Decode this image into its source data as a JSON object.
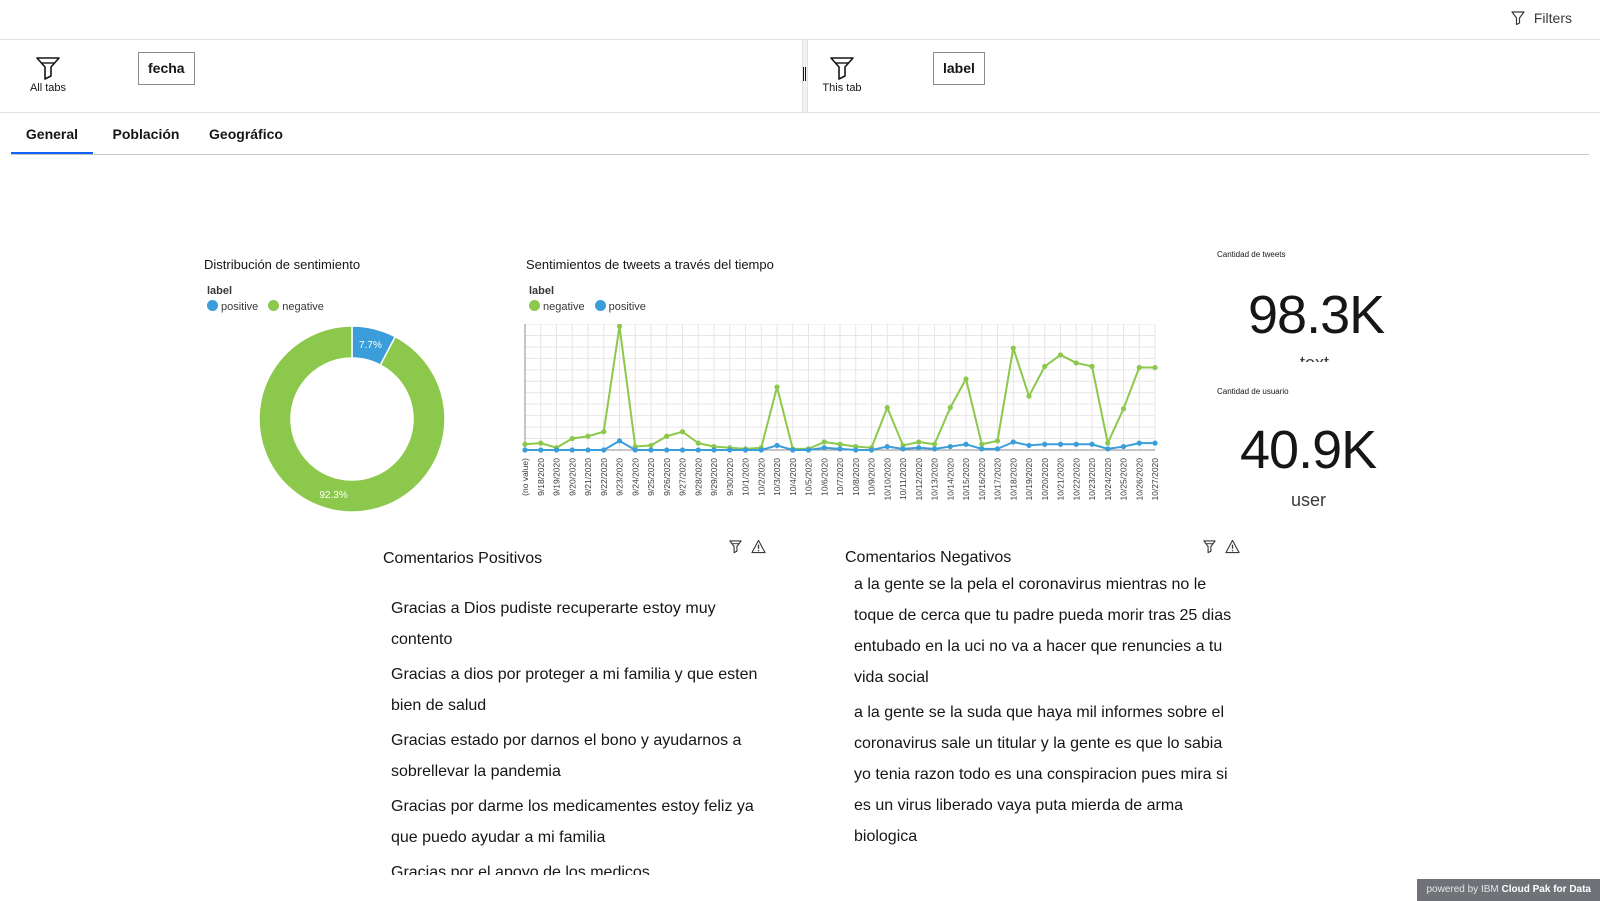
{
  "topbar": {
    "filters_label": "Filters"
  },
  "filterbar": {
    "all_tabs_label": "All tabs",
    "all_tabs_chip": "fecha",
    "this_tab_label": "This tab",
    "this_tab_chip": "label"
  },
  "tabs": [
    {
      "label": "General",
      "active": true
    },
    {
      "label": "Población",
      "active": false
    },
    {
      "label": "Geográfico",
      "active": false
    }
  ],
  "colors": {
    "positive": "#3b9edb",
    "negative": "#8cc84b",
    "tab_accent": "#0f62fe"
  },
  "donut": {
    "title": "Distribución de sentimiento",
    "legend_title": "label",
    "legend": [
      "positive",
      "negative"
    ]
  },
  "line": {
    "title": "Sentimientos de tweets a través del tiempo",
    "legend_title": "label",
    "legend": [
      "negative",
      "positive"
    ]
  },
  "kpis": [
    {
      "label": "Cantidad de tweets",
      "value": "98.3K",
      "sub": "text"
    },
    {
      "label": "Cantidad de usuario",
      "value": "40.9K",
      "sub": "user"
    }
  ],
  "chart_data": [
    {
      "type": "pie",
      "title": "Distribución de sentimiento",
      "categories": [
        "positive",
        "negative"
      ],
      "values": [
        7.7,
        92.3
      ],
      "labels": [
        "7.7%",
        "92.3%"
      ],
      "legend": "top-left"
    },
    {
      "type": "line",
      "title": "Sentimientos de tweets a través del tiempo",
      "xlabel": "",
      "ylabel": "",
      "x": [
        "(no value)",
        "9/18/2020",
        "9/19/2020",
        "9/20/2020",
        "9/21/2020",
        "9/22/2020",
        "9/23/2020",
        "9/24/2020",
        "9/25/2020",
        "9/26/2020",
        "9/27/2020",
        "9/28/2020",
        "9/29/2020",
        "9/30/2020",
        "10/1/2020",
        "10/2/2020",
        "10/3/2020",
        "10/4/2020",
        "10/5/2020",
        "10/6/2020",
        "10/7/2020",
        "10/8/2020",
        "10/9/2020",
        "10/10/2020",
        "10/11/2020",
        "10/12/2020",
        "10/13/2020",
        "10/14/2020",
        "10/15/2020",
        "10/16/2020",
        "10/17/2020",
        "10/18/2020",
        "10/19/2020",
        "10/20/2020",
        "10/21/2020",
        "10/22/2020",
        "10/23/2020",
        "10/24/2020",
        "10/25/2020",
        "10/26/2020",
        "10/27/2020"
      ],
      "series": [
        {
          "name": "negative",
          "values": [
            5,
            6,
            2,
            10,
            12,
            16,
            108,
            3,
            4,
            12,
            16,
            6,
            3,
            2,
            1,
            2,
            55,
            1,
            1,
            7,
            5,
            3,
            2,
            37,
            4,
            7,
            5,
            37,
            62,
            5,
            8,
            89,
            47,
            73,
            83,
            76,
            73,
            6,
            36,
            72,
            72
          ]
        },
        {
          "name": "positive",
          "values": [
            0,
            0,
            0,
            0,
            0,
            0,
            8,
            0,
            0,
            0,
            0,
            0,
            0,
            0,
            0,
            0,
            4,
            0,
            0,
            2,
            1,
            0,
            0,
            3,
            1,
            2,
            1,
            3,
            5,
            1,
            1,
            7,
            4,
            5,
            5,
            5,
            5,
            1,
            3,
            6,
            6
          ]
        }
      ],
      "ylim": [
        0,
        110
      ],
      "grid": true,
      "legend": "top-left"
    }
  ],
  "positive_comments": {
    "title": "Comentarios Positivos",
    "items": [
      "Gracias a Dios pudiste recuperarte estoy muy contento",
      "Gracias a dios por proteger a mi familia y que esten bien de salud",
      "Gracias estado por darnos el bono y ayudarnos a sobrellevar la pandemia",
      "Gracias por darme los medicamentes estoy feliz ya que puedo ayudar a mi familia",
      "Gracias por el apoyo de los medicos"
    ]
  },
  "negative_comments": {
    "title": "Comentarios Negativos",
    "items": [
      "a la gente se la pela el coronavirus mientras no le toque de cerca que tu padre pueda morir tras 25 dias entubado en la uci no va a hacer que renuncies a tu vida social",
      "a la gente se la suda que haya mil informes sobre el coronavirus sale un titular y la gente es que lo sabia yo tenia razon todo es una conspiracion pues mira si es un virus liberado vaya puta mierda de arma biologica"
    ]
  },
  "footer": {
    "powered_prefix": "powered by",
    "ibm": "IBM",
    "product": "Cloud Pak for Data"
  }
}
